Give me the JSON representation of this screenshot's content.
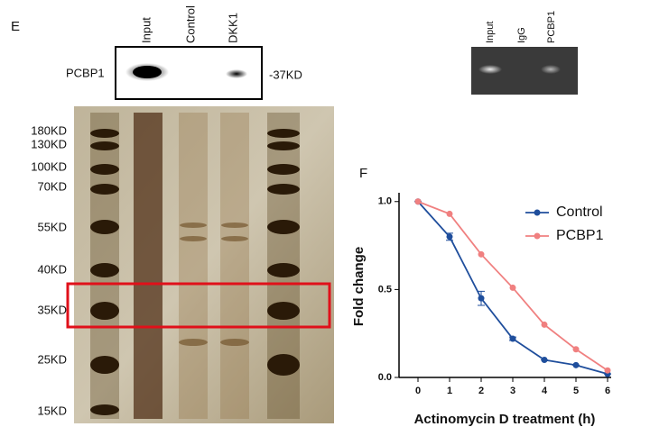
{
  "panel_labels": {
    "left": "E",
    "right": "F"
  },
  "western_blot": {
    "lanes": [
      "Input",
      "Control",
      "DKK1"
    ],
    "protein": "PCBP1",
    "size": "-37KD"
  },
  "rip_pcr": {
    "lanes": [
      "Input",
      "IgG",
      "PCBP1"
    ]
  },
  "silver_gel": {
    "markers": [
      "180KD",
      "130KD",
      "100KD",
      "70KD",
      "55KD",
      "40KD",
      "35KD",
      "25KD",
      "15KD"
    ]
  },
  "chart_data": {
    "type": "line",
    "x_label": "Actinomycin D treatment (h)",
    "y_label": "Fold change",
    "x": [
      0,
      1,
      2,
      3,
      4,
      5,
      6
    ],
    "series": [
      {
        "name": "Control",
        "color": "#1f4e9c",
        "values": [
          1.0,
          0.8,
          0.45,
          0.22,
          0.1,
          0.07,
          0.02
        ],
        "errors": [
          0,
          0.02,
          0.04,
          0.01,
          0,
          0,
          0
        ]
      },
      {
        "name": "PCBP1",
        "color": "#f08080",
        "values": [
          1.0,
          0.93,
          0.7,
          0.51,
          0.3,
          0.16,
          0.04
        ]
      }
    ],
    "xlim": [
      -0.6,
      6
    ],
    "ylim": [
      0,
      1.05
    ],
    "xticks": [
      0,
      1,
      2,
      3,
      4,
      5,
      6
    ],
    "yticks": [
      {
        "value": 0,
        "label": "0.0"
      },
      {
        "value": 0.5,
        "label": "0.5"
      },
      {
        "value": 1,
        "label": "1.0"
      }
    ],
    "legend": "upper-right"
  }
}
